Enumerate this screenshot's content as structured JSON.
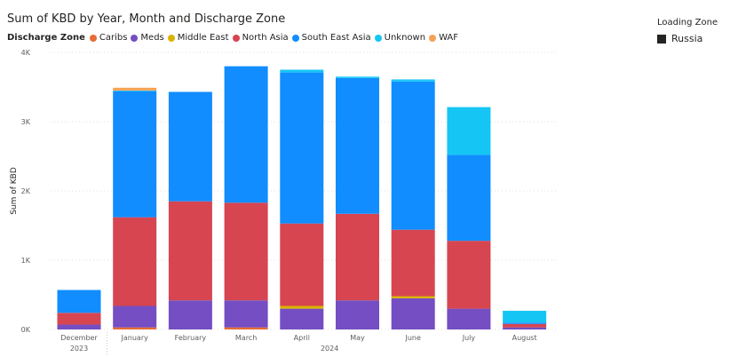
{
  "title": "Sum of KBD by Year, Month and Discharge Zone",
  "legend_title": "Discharge Zone",
  "loading_zone": {
    "title": "Loading Zone",
    "item": "Russia",
    "color": "#252423"
  },
  "chart_data": {
    "type": "bar",
    "stacked": true,
    "title": "Sum of KBD by Year, Month and Discharge Zone",
    "ylabel": "Sum of KBD",
    "ylim": [
      0,
      4000
    ],
    "yticks": [
      0,
      1000,
      2000,
      3000,
      4000
    ],
    "ytick_labels": [
      "0K",
      "1K",
      "2K",
      "3K",
      "4K"
    ],
    "grid": true,
    "legend_position": "top-left",
    "categories": [
      "December",
      "January",
      "February",
      "March",
      "April",
      "May",
      "June",
      "July",
      "August"
    ],
    "years": [
      {
        "label": "2023",
        "months": [
          "December"
        ]
      },
      {
        "label": "2024",
        "months": [
          "January",
          "February",
          "March",
          "April",
          "May",
          "June",
          "July",
          "August"
        ]
      }
    ],
    "series": [
      {
        "name": "Caribs",
        "color": "#e66c37",
        "values": [
          0,
          30,
          0,
          30,
          0,
          0,
          0,
          0,
          0
        ]
      },
      {
        "name": "Meds",
        "color": "#744ec2",
        "values": [
          70,
          310,
          420,
          390,
          300,
          420,
          450,
          300,
          30
        ]
      },
      {
        "name": "Middle East",
        "color": "#d9b300",
        "values": [
          0,
          0,
          0,
          0,
          40,
          0,
          30,
          0,
          0
        ]
      },
      {
        "name": "North Asia",
        "color": "#d64550",
        "values": [
          170,
          1280,
          1430,
          1410,
          1190,
          1250,
          960,
          980,
          50
        ]
      },
      {
        "name": "South East Asia",
        "color": "#118dff",
        "values": [
          330,
          1820,
          1580,
          1970,
          2180,
          1960,
          2140,
          1240,
          20
        ]
      },
      {
        "name": "Unknown",
        "color": "#15c6f4",
        "values": [
          0,
          10,
          0,
          0,
          40,
          20,
          30,
          690,
          170
        ]
      },
      {
        "name": "WAF",
        "color": "#f5a156",
        "values": [
          0,
          40,
          0,
          0,
          0,
          0,
          0,
          0,
          0
        ]
      }
    ]
  }
}
